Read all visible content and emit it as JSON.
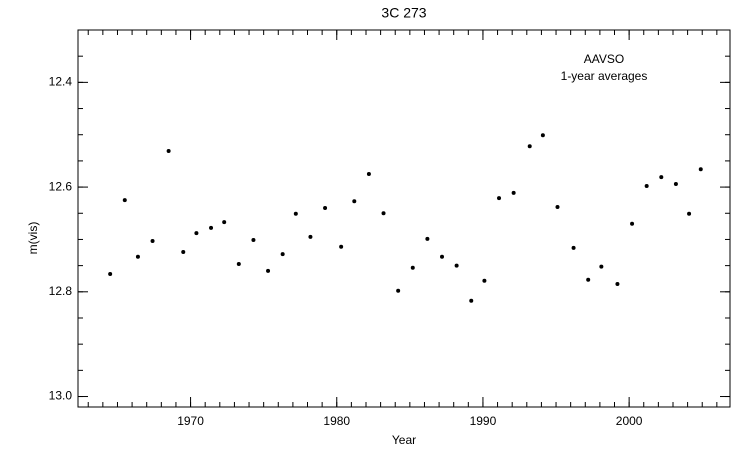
{
  "chart_data": {
    "type": "scatter",
    "title": "3C 273",
    "x_label": "Year",
    "y_label": "m(vis)",
    "annotations": [
      "AAVSO",
      "1-year averages"
    ],
    "series": [
      {
        "color": "#000000",
        "x": [
          1964.5,
          1965.5,
          1966.4,
          1967.4,
          1968.5,
          1969.5,
          1970.4,
          1971.4,
          1972.3,
          1973.3,
          1974.3,
          1975.3,
          1976.3,
          1977.2,
          1978.2,
          1979.2,
          1980.3,
          1981.2,
          1982.2,
          1983.2,
          1984.2,
          1985.2,
          1986.2,
          1987.2,
          1988.2,
          1989.2,
          1990.1,
          1991.1,
          1992.1,
          1993.2,
          1994.1,
          1995.1,
          1996.2,
          1997.2,
          1998.1,
          1999.2,
          2000.2,
          2001.2,
          2002.2,
          2003.2,
          2004.1,
          2004.9
        ],
        "values": [
          12.766,
          12.625,
          12.733,
          12.703,
          12.531,
          12.724,
          12.688,
          12.678,
          12.667,
          12.747,
          12.701,
          12.76,
          12.728,
          12.651,
          12.695,
          12.64,
          12.714,
          12.627,
          12.575,
          12.65,
          12.798,
          12.754,
          12.699,
          12.733,
          12.75,
          12.817,
          12.779,
          12.621,
          12.611,
          12.522,
          12.501,
          12.638,
          12.716,
          12.777,
          12.752,
          12.785,
          12.67,
          12.598,
          12.581,
          12.594,
          12.651,
          12.566
        ]
      }
    ],
    "xlim": [
      1962.3,
      2006.9
    ],
    "xticks": [
      1970,
      1980,
      1990,
      2000
    ],
    "ylim": [
      13.02,
      12.3
    ],
    "yticks": [
      {
        "value": 12.4,
        "label": "12.4"
      },
      {
        "value": 12.6,
        "label": "12.6"
      },
      {
        "value": 12.8,
        "label": "12.8"
      },
      {
        "value": 13.0,
        "label": "13.0"
      }
    ]
  }
}
